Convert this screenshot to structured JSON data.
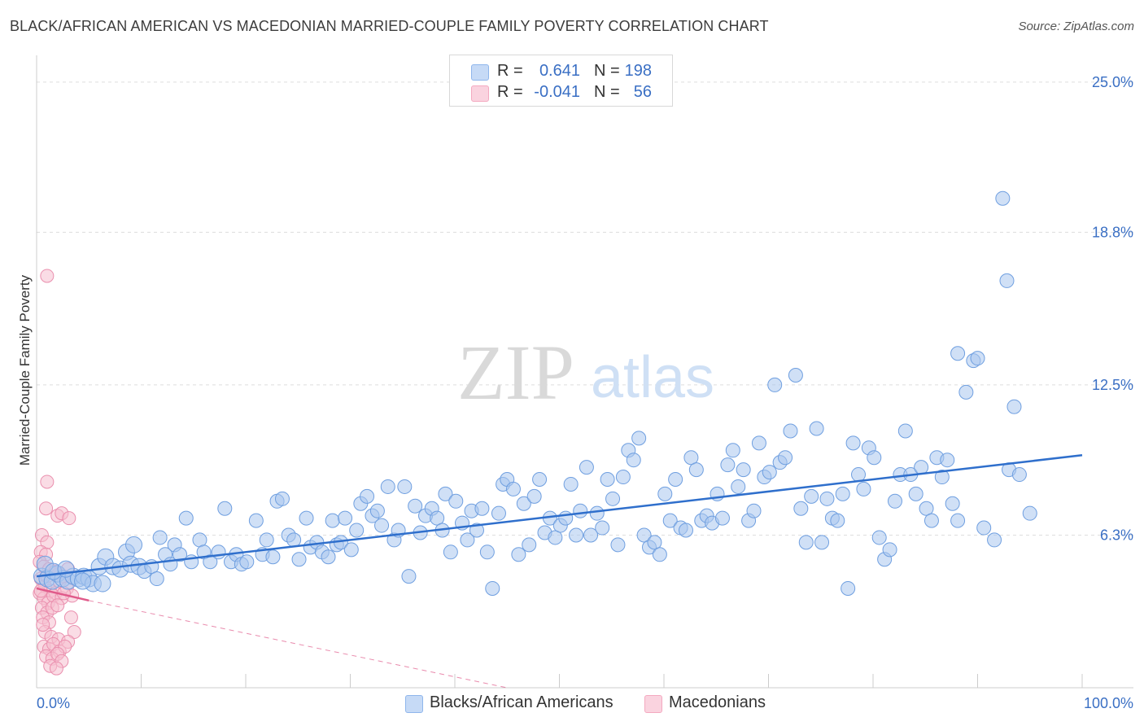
{
  "header": {
    "title": "BLACK/AFRICAN AMERICAN VS MACEDONIAN MARRIED-COUPLE FAMILY POVERTY CORRELATION CHART",
    "source": "Source: ZipAtlas.com"
  },
  "watermark": {
    "zip": "ZIP",
    "atlas": "atlas"
  },
  "legend": {
    "rows": [
      {
        "r_label": "R =",
        "r_value": "0.641",
        "n_label": "N =",
        "n_value": "198",
        "color": "#8fb6ec"
      },
      {
        "r_label": "R =",
        "r_value": "-0.041",
        "n_label": "N =",
        "n_value": "56",
        "color": "#f4a9c0"
      }
    ]
  },
  "colors": {
    "blue_fill": "#a9c6ef",
    "blue_stroke": "#6f9fe0",
    "blue_line": "#2f6fcc",
    "pink_fill": "#f6bfd0",
    "pink_stroke": "#ea8fae",
    "pink_line": "#e05a8a",
    "axis_label": "#3a6fc4",
    "grid": "#dddddd"
  },
  "chart_data": {
    "type": "scatter",
    "title": "BLACK/AFRICAN AMERICAN VS MACEDONIAN MARRIED-COUPLE FAMILY POVERTY CORRELATION CHART",
    "xlabel": "",
    "ylabel": "Married-Couple Family Poverty",
    "xlim": [
      0,
      100
    ],
    "ylim": [
      0,
      25.7
    ],
    "x_tick_labels": [
      "0.0%",
      "100.0%"
    ],
    "y_ticks": [
      6.3,
      12.5,
      18.8,
      25.0
    ],
    "y_tick_labels": [
      "6.3%",
      "12.5%",
      "18.8%",
      "25.0%"
    ],
    "grid": true,
    "legend_position": "top-center",
    "series": [
      {
        "name": "Blacks/African Americans",
        "R": 0.641,
        "N": 198,
        "trend": {
          "x": [
            0,
            100
          ],
          "y": [
            4.6,
            9.6
          ]
        },
        "points": [
          [
            0.5,
            4.6
          ],
          [
            1.0,
            4.5
          ],
          [
            1.5,
            4.4
          ],
          [
            2.0,
            4.7
          ],
          [
            2.5,
            4.5
          ],
          [
            3.0,
            4.4
          ],
          [
            3.5,
            4.6
          ],
          [
            4.0,
            4.5
          ],
          [
            4.5,
            4.6
          ],
          [
            5.0,
            4.5
          ],
          [
            5.4,
            4.3
          ],
          [
            6.0,
            5.0
          ],
          [
            6.6,
            5.4
          ],
          [
            7.3,
            5.0
          ],
          [
            8.0,
            4.9
          ],
          [
            8.6,
            5.6
          ],
          [
            9.0,
            5.1
          ],
          [
            9.8,
            5.0
          ],
          [
            10.3,
            4.8
          ],
          [
            11.0,
            5.0
          ],
          [
            11.5,
            4.5
          ],
          [
            11.8,
            6.2
          ],
          [
            12.3,
            5.5
          ],
          [
            12.8,
            5.1
          ],
          [
            13.2,
            5.9
          ],
          [
            13.7,
            5.5
          ],
          [
            14.3,
            7.0
          ],
          [
            14.8,
            5.2
          ],
          [
            15.6,
            6.1
          ],
          [
            16.0,
            5.6
          ],
          [
            16.6,
            5.2
          ],
          [
            17.4,
            5.6
          ],
          [
            18.0,
            7.4
          ],
          [
            18.6,
            5.2
          ],
          [
            19.1,
            5.5
          ],
          [
            19.6,
            5.1
          ],
          [
            20.1,
            5.2
          ],
          [
            21.0,
            6.9
          ],
          [
            21.6,
            5.5
          ],
          [
            22.0,
            6.1
          ],
          [
            22.6,
            5.4
          ],
          [
            23.0,
            7.7
          ],
          [
            23.5,
            7.8
          ],
          [
            24.1,
            6.3
          ],
          [
            24.6,
            6.1
          ],
          [
            25.1,
            5.3
          ],
          [
            25.8,
            7.0
          ],
          [
            26.2,
            5.8
          ],
          [
            26.8,
            6.0
          ],
          [
            27.3,
            5.6
          ],
          [
            27.9,
            5.4
          ],
          [
            28.3,
            6.9
          ],
          [
            28.7,
            5.9
          ],
          [
            29.1,
            6.0
          ],
          [
            29.5,
            7.0
          ],
          [
            30.1,
            5.7
          ],
          [
            30.6,
            6.5
          ],
          [
            31.0,
            7.6
          ],
          [
            31.6,
            7.9
          ],
          [
            32.1,
            7.1
          ],
          [
            32.6,
            7.3
          ],
          [
            33.0,
            6.7
          ],
          [
            33.6,
            8.3
          ],
          [
            34.2,
            6.1
          ],
          [
            34.6,
            6.5
          ],
          [
            35.2,
            8.3
          ],
          [
            35.6,
            4.6
          ],
          [
            36.2,
            7.5
          ],
          [
            36.7,
            6.4
          ],
          [
            37.2,
            7.1
          ],
          [
            37.8,
            7.4
          ],
          [
            38.3,
            7.0
          ],
          [
            38.8,
            6.5
          ],
          [
            39.1,
            8.0
          ],
          [
            39.6,
            5.6
          ],
          [
            40.1,
            7.7
          ],
          [
            40.7,
            6.8
          ],
          [
            41.2,
            6.1
          ],
          [
            41.6,
            7.3
          ],
          [
            42.1,
            6.5
          ],
          [
            42.6,
            7.4
          ],
          [
            43.1,
            5.6
          ],
          [
            43.6,
            4.1
          ],
          [
            44.2,
            7.2
          ],
          [
            44.6,
            8.4
          ],
          [
            45.0,
            8.6
          ],
          [
            45.6,
            8.2
          ],
          [
            46.1,
            5.5
          ],
          [
            46.6,
            7.6
          ],
          [
            47.1,
            5.9
          ],
          [
            47.6,
            7.9
          ],
          [
            48.1,
            8.6
          ],
          [
            48.6,
            6.4
          ],
          [
            49.1,
            7.0
          ],
          [
            49.6,
            6.2
          ],
          [
            50.1,
            6.7
          ],
          [
            50.6,
            7.0
          ],
          [
            51.1,
            8.4
          ],
          [
            51.6,
            6.3
          ],
          [
            52.0,
            7.3
          ],
          [
            52.6,
            9.1
          ],
          [
            53.0,
            6.3
          ],
          [
            53.6,
            7.2
          ],
          [
            54.1,
            6.6
          ],
          [
            54.6,
            8.6
          ],
          [
            55.1,
            7.8
          ],
          [
            55.6,
            5.9
          ],
          [
            56.1,
            8.7
          ],
          [
            56.6,
            9.8
          ],
          [
            57.1,
            9.4
          ],
          [
            57.6,
            10.3
          ],
          [
            58.1,
            6.3
          ],
          [
            58.6,
            5.8
          ],
          [
            59.1,
            6.0
          ],
          [
            59.6,
            5.5
          ],
          [
            60.1,
            8.0
          ],
          [
            60.6,
            6.9
          ],
          [
            61.1,
            8.6
          ],
          [
            61.6,
            6.6
          ],
          [
            62.1,
            6.5
          ],
          [
            62.6,
            9.5
          ],
          [
            63.1,
            9.0
          ],
          [
            63.6,
            6.9
          ],
          [
            64.1,
            7.1
          ],
          [
            64.6,
            6.8
          ],
          [
            65.1,
            8.0
          ],
          [
            65.6,
            7.0
          ],
          [
            66.1,
            9.2
          ],
          [
            66.6,
            9.8
          ],
          [
            67.1,
            8.3
          ],
          [
            67.6,
            9.0
          ],
          [
            68.1,
            6.9
          ],
          [
            68.6,
            7.3
          ],
          [
            69.1,
            10.1
          ],
          [
            69.6,
            8.7
          ],
          [
            70.1,
            8.9
          ],
          [
            70.6,
            12.5
          ],
          [
            71.1,
            9.3
          ],
          [
            71.6,
            9.5
          ],
          [
            72.1,
            10.6
          ],
          [
            72.6,
            12.9
          ],
          [
            73.1,
            7.4
          ],
          [
            73.6,
            6.0
          ],
          [
            74.1,
            7.9
          ],
          [
            74.6,
            10.7
          ],
          [
            75.1,
            6.0
          ],
          [
            75.6,
            7.8
          ],
          [
            76.1,
            7.0
          ],
          [
            76.6,
            6.9
          ],
          [
            77.1,
            8.0
          ],
          [
            77.6,
            4.1
          ],
          [
            78.1,
            10.1
          ],
          [
            78.6,
            8.8
          ],
          [
            79.1,
            8.2
          ],
          [
            79.6,
            9.9
          ],
          [
            80.1,
            9.5
          ],
          [
            80.6,
            6.2
          ],
          [
            81.1,
            5.3
          ],
          [
            81.6,
            5.7
          ],
          [
            82.1,
            7.7
          ],
          [
            82.6,
            8.8
          ],
          [
            83.1,
            10.6
          ],
          [
            83.6,
            8.8
          ],
          [
            84.1,
            8.0
          ],
          [
            84.6,
            9.1
          ],
          [
            85.1,
            7.4
          ],
          [
            85.6,
            6.9
          ],
          [
            86.1,
            9.5
          ],
          [
            86.6,
            8.7
          ],
          [
            87.1,
            9.4
          ],
          [
            87.6,
            7.6
          ],
          [
            88.1,
            13.8
          ],
          [
            88.1,
            6.9
          ],
          [
            88.9,
            12.2
          ],
          [
            89.6,
            13.5
          ],
          [
            90.0,
            13.6
          ],
          [
            90.6,
            6.6
          ],
          [
            91.6,
            6.1
          ],
          [
            92.4,
            20.2
          ],
          [
            92.8,
            16.8
          ],
          [
            93.0,
            9.0
          ],
          [
            93.5,
            11.6
          ],
          [
            94.0,
            8.8
          ],
          [
            95.0,
            7.2
          ],
          [
            0.8,
            5.1
          ],
          [
            1.6,
            4.8
          ],
          [
            2.8,
            4.9
          ],
          [
            4.4,
            4.4
          ],
          [
            6.3,
            4.3
          ],
          [
            9.3,
            5.9
          ]
        ]
      },
      {
        "name": "Macedonians",
        "R": -0.041,
        "N": 56,
        "trend": {
          "x": [
            0,
            5
          ],
          "y": [
            4.1,
            3.6
          ]
        },
        "trend_extension": {
          "x": [
            5,
            45
          ],
          "y": [
            3.6,
            0.0
          ]
        },
        "points": [
          [
            1.0,
            17.0
          ],
          [
            1.0,
            8.5
          ],
          [
            0.9,
            7.4
          ],
          [
            2.0,
            7.1
          ],
          [
            2.4,
            7.2
          ],
          [
            3.1,
            7.0
          ],
          [
            0.5,
            6.3
          ],
          [
            1.0,
            6.0
          ],
          [
            0.4,
            5.6
          ],
          [
            0.9,
            5.5
          ],
          [
            0.3,
            5.2
          ],
          [
            0.7,
            5.0
          ],
          [
            1.2,
            4.9
          ],
          [
            2.1,
            4.7
          ],
          [
            2.6,
            4.6
          ],
          [
            3.0,
            4.9
          ],
          [
            0.4,
            4.5
          ],
          [
            0.8,
            4.2
          ],
          [
            1.3,
            4.0
          ],
          [
            1.8,
            3.9
          ],
          [
            2.2,
            4.4
          ],
          [
            2.9,
            4.1
          ],
          [
            0.3,
            3.9
          ],
          [
            0.7,
            3.7
          ],
          [
            1.1,
            3.5
          ],
          [
            1.6,
            3.8
          ],
          [
            2.4,
            3.7
          ],
          [
            3.4,
            3.8
          ],
          [
            0.5,
            3.3
          ],
          [
            1.0,
            3.1
          ],
          [
            1.5,
            3.3
          ],
          [
            2.0,
            3.4
          ],
          [
            0.6,
            2.9
          ],
          [
            1.2,
            2.7
          ],
          [
            3.3,
            2.9
          ],
          [
            0.8,
            2.3
          ],
          [
            1.4,
            2.1
          ],
          [
            3.6,
            2.3
          ],
          [
            2.1,
            2.0
          ],
          [
            3.0,
            1.9
          ],
          [
            0.7,
            1.7
          ],
          [
            1.2,
            1.6
          ],
          [
            1.6,
            1.8
          ],
          [
            2.2,
            1.5
          ],
          [
            2.7,
            1.7
          ],
          [
            0.9,
            1.3
          ],
          [
            1.5,
            1.2
          ],
          [
            2.0,
            1.4
          ],
          [
            2.4,
            1.1
          ],
          [
            1.3,
            0.9
          ],
          [
            1.9,
            0.8
          ],
          [
            0.6,
            2.6
          ],
          [
            1.0,
            4.6
          ],
          [
            1.8,
            4.8
          ],
          [
            0.4,
            4.0
          ],
          [
            2.6,
            3.9
          ]
        ]
      }
    ]
  },
  "bottom_legend": [
    {
      "label": "Blacks/African Americans",
      "color": "#a9c6ef"
    },
    {
      "label": "Macedonians",
      "color": "#f6bfd0"
    }
  ]
}
